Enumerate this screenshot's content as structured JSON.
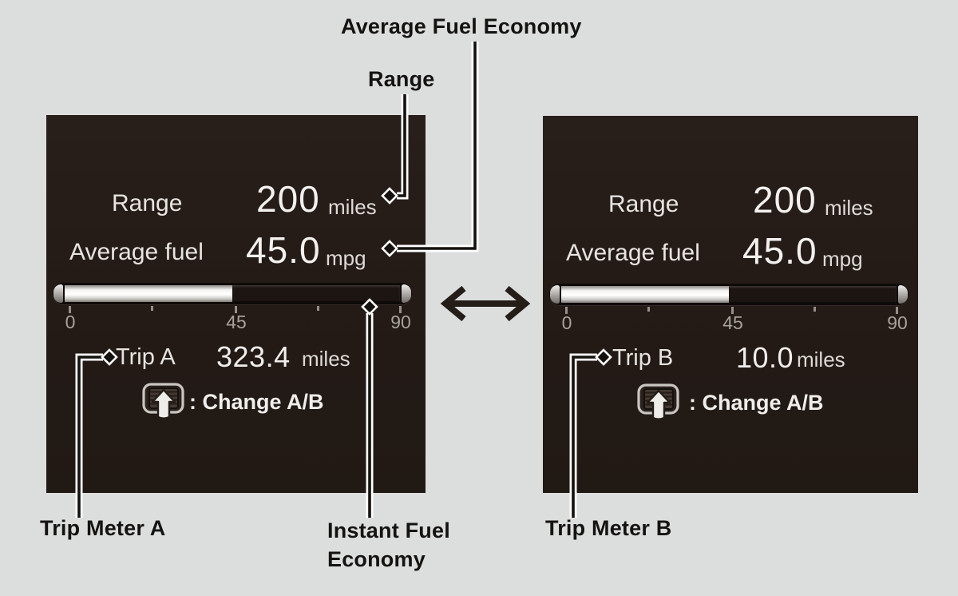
{
  "callouts": {
    "average_fuel_economy": "Average Fuel Economy",
    "range": "Range",
    "trip_meter_a": "Trip Meter A",
    "instant_fuel_economy_lines": [
      "Instant Fuel",
      "Economy"
    ],
    "trip_meter_b": "Trip Meter B"
  },
  "panels": [
    {
      "range_label": "Range",
      "range_value": "200",
      "range_unit": "miles",
      "avg_label": "Average fuel",
      "avg_value": "45.0",
      "avg_unit": "mpg",
      "gauge": {
        "ticks": [
          "0",
          "45",
          "90"
        ],
        "fill_percent": 50,
        "min": 0,
        "max": 90
      },
      "trip_label": "Trip A",
      "trip_value": "323.4",
      "trip_unit": "miles",
      "change_label": ": Change A/B"
    },
    {
      "range_label": "Range",
      "range_value": "200",
      "range_unit": "miles",
      "avg_label": "Average fuel",
      "avg_value": "45.0",
      "avg_unit": "mpg",
      "gauge": {
        "ticks": [
          "0",
          "45",
          "90"
        ],
        "fill_percent": 50,
        "min": 0,
        "max": 90
      },
      "trip_label": "Trip B",
      "trip_value": "10.0",
      "trip_unit": "miles",
      "change_label": ": Change A/B"
    }
  ],
  "colors": {
    "page_background": "#dcdedd",
    "panel_background": "#241b17",
    "display_text": "#eae7e4",
    "callout_text": "#151311",
    "gauge_fill": "#ffffff"
  }
}
